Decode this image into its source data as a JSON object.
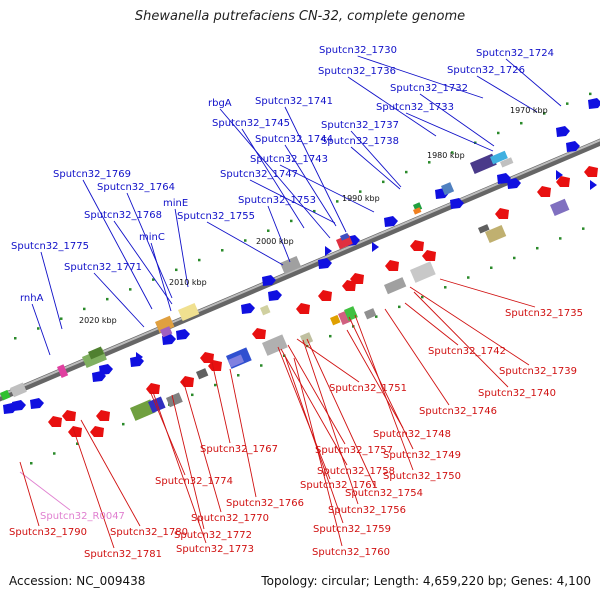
{
  "title": "Shewanella putrefaciens CN-32, complete genome",
  "footer": {
    "accession": "Accession: NC_009438",
    "summary": "Topology: circular; Length: 4,659,220 bp; Genes: 4,100"
  },
  "colors": {
    "forward_label": "#1010c8",
    "reverse_label": "#d01010",
    "rna_label": "#e080d0",
    "backbone": "#888888"
  },
  "ticks": [
    {
      "text": "1970 kbp"
    },
    {
      "text": "1980 kbp"
    },
    {
      "text": "1990 kbp"
    },
    {
      "text": "2000 kbp"
    },
    {
      "text": "2010 kbp"
    },
    {
      "text": "2020 kbp"
    }
  ],
  "top_labels": [
    "Sputcn32_1730",
    "Sputcn32_1724",
    "Sputcn32_1726",
    "Sputcn32_1736",
    "Sputcn32_1732",
    "Sputcn32_1741",
    "rbgA",
    "Sputcn32_1733",
    "Sputcn32_1745",
    "Sputcn32_1737",
    "Sputcn32_1744",
    "Sputcn32_1738",
    "Sputcn32_1743",
    "Sputcn32_1769",
    "Sputcn32_1747",
    "Sputcn32_1764",
    "minE",
    "Sputcn32_1753",
    "Sputcn32_1768",
    "Sputcn32_1755",
    "minC",
    "Sputcn32_1775",
    "Sputcn32_1771",
    "rnhA"
  ],
  "bottom_labels": [
    "Sputcn32_1735",
    "Sputcn32_1742",
    "Sputcn32_1739",
    "Sputcn32_1740",
    "Sputcn32_1751",
    "Sputcn32_1746",
    "Sputcn32_1748",
    "Sputcn32_1767",
    "Sputcn32_1757",
    "Sputcn32_1749",
    "Sputcn32_1758",
    "Sputcn32_1750",
    "Sputcn32_1774",
    "Sputcn32_1761",
    "Sputcn32_1754",
    "Sputcn32_1766",
    "Sputcn32_1756",
    "Sputcn32_R0047",
    "Sputcn32_1770",
    "Sputcn32_1759",
    "Sputcn32_1790",
    "Sputcn32_1780",
    "Sputcn32_1772",
    "Sputcn32_1773",
    "Sputcn32_1760",
    "Sputcn32_1781"
  ]
}
